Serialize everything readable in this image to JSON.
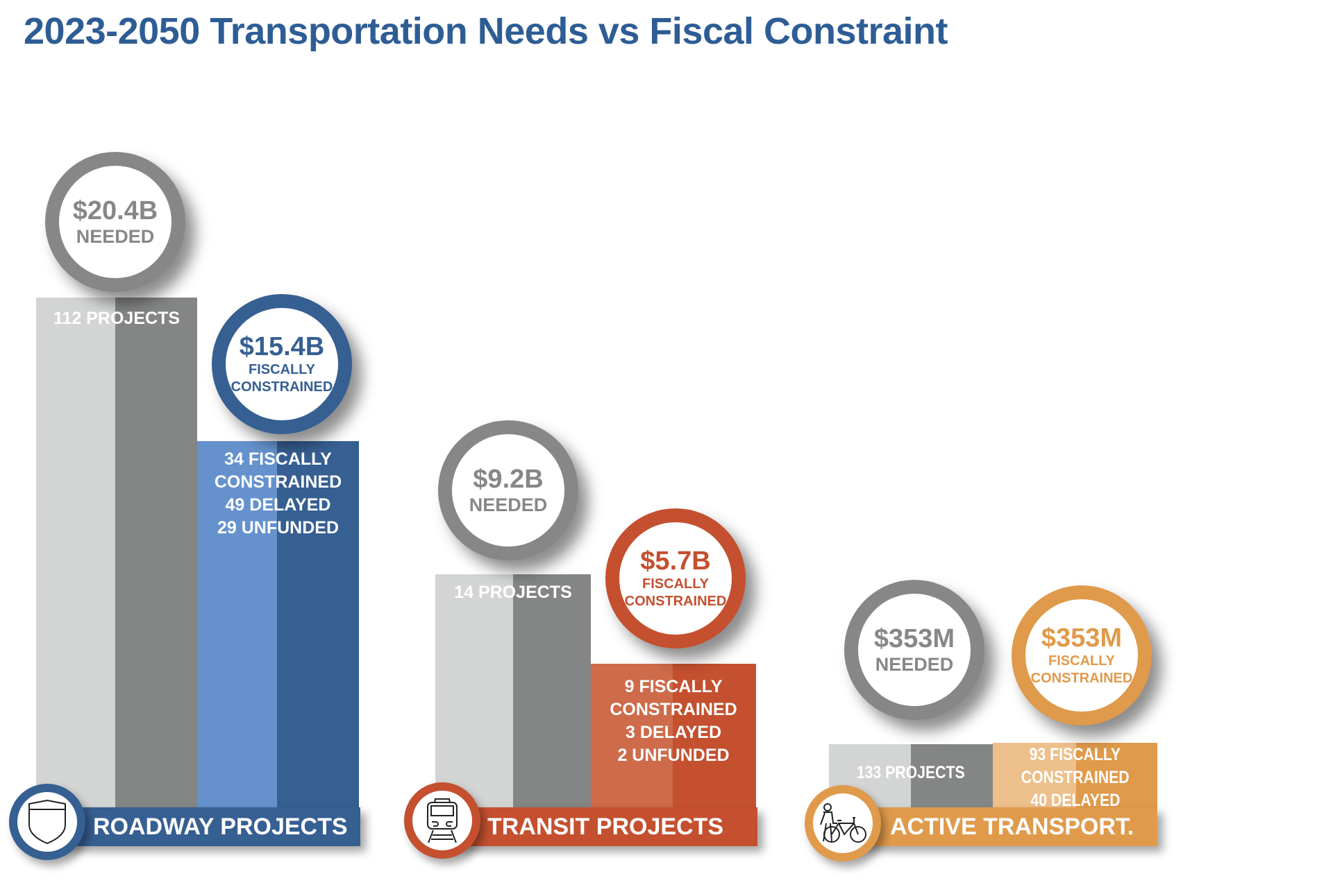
{
  "title": "2023-2050 Transportation Needs vs Fiscal Constraint",
  "colors": {
    "title": "#2e5d95",
    "gray_light": "#d3d5d4",
    "gray_dark": "#848685",
    "roadway_light": "#6592cd",
    "roadway_dark": "#365f92",
    "transit_light": "#cd6b4a",
    "transit_dark": "#c4502f",
    "active_light": "#edbf8a",
    "active_dark": "#e09a4b"
  },
  "roadway": {
    "label": "ROADWAY PROJECTS",
    "icon": "shield-icon",
    "needed_value": "$20.4B",
    "needed_label": "NEEDED",
    "projects": "112 PROJECTS",
    "fiscal_value": "$15.4B",
    "fiscal_label_1": "FISCALLY",
    "fiscal_label_2": "CONSTRAINED",
    "breakdown": [
      "34 FISCALLY",
      "CONSTRAINED",
      "49 DELAYED",
      "29 UNFUNDED"
    ]
  },
  "transit": {
    "label": "TRANSIT PROJECTS",
    "icon": "train-icon",
    "needed_value": "$9.2B",
    "needed_label": "NEEDED",
    "projects": "14 PROJECTS",
    "fiscal_value": "$5.7B",
    "fiscal_label_1": "FISCALLY",
    "fiscal_label_2": "CONSTRAINED",
    "breakdown": [
      "9 FISCALLY",
      "CONSTRAINED",
      "3 DELAYED",
      "2 UNFUNDED"
    ]
  },
  "active": {
    "label": "ACTIVE TRANSPORT.",
    "icon": "pedestrian-bicycle-icon",
    "needed_value": "$353M",
    "needed_label": "NEEDED",
    "projects": "133 PROJECTS",
    "fiscal_value": "$353M",
    "fiscal_label_1": "FISCALLY",
    "fiscal_label_2": "CONSTRAINED",
    "breakdown": [
      "93 FISCALLY",
      "CONSTRAINED",
      "40 DELAYED"
    ]
  }
}
